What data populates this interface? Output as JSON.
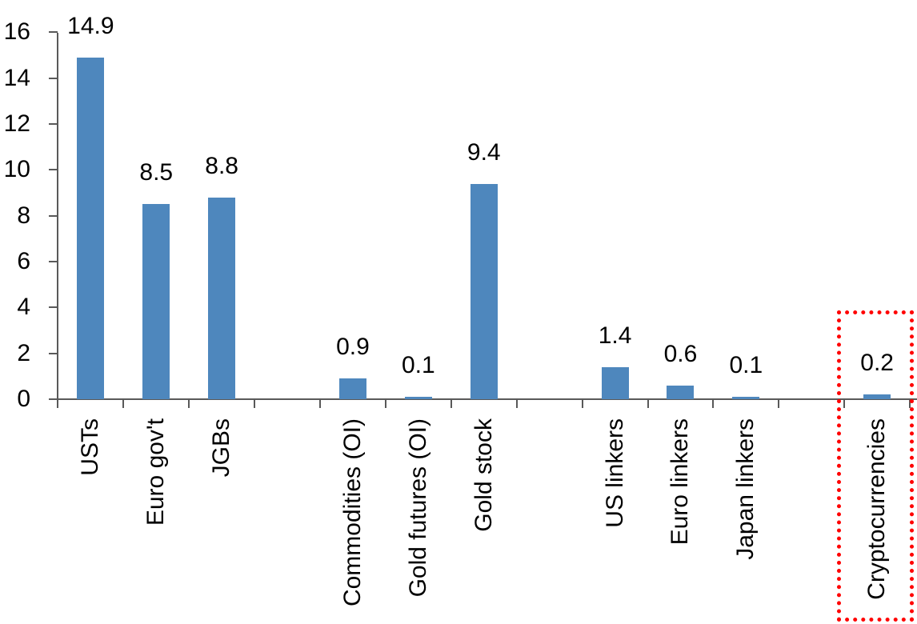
{
  "chart_data": {
    "type": "bar",
    "categories": [
      "USTs",
      "Euro gov't",
      "JGBs",
      "",
      "Commodities (OI)",
      "Gold futures (OI)",
      "Gold stock",
      "",
      "US linkers",
      "Euro linkers",
      "Japan linkers",
      "",
      "Cryptocurrencies"
    ],
    "values": [
      14.9,
      8.5,
      8.8,
      null,
      0.9,
      0.1,
      9.4,
      null,
      1.4,
      0.6,
      0.1,
      null,
      0.2
    ],
    "data_labels": [
      "14.9",
      "8.5",
      "8.8",
      "",
      "0.9",
      "0.1",
      "9.4",
      "",
      "1.4",
      "0.6",
      "0.1",
      "",
      "0.2"
    ],
    "title": "",
    "xlabel": "",
    "ylabel": "",
    "ylim": [
      0,
      16
    ],
    "yticks": [
      0,
      2,
      4,
      6,
      8,
      10,
      12,
      14,
      16
    ],
    "grid": false,
    "legend": null,
    "bar_color": "#4E87BD",
    "axis_color": "#595959",
    "text_color": "#000000",
    "background_color": "#FFFFFF",
    "highlight": {
      "category": "Cryptocurrencies",
      "style": "red-dotted-box",
      "color": "#FF0000"
    }
  }
}
